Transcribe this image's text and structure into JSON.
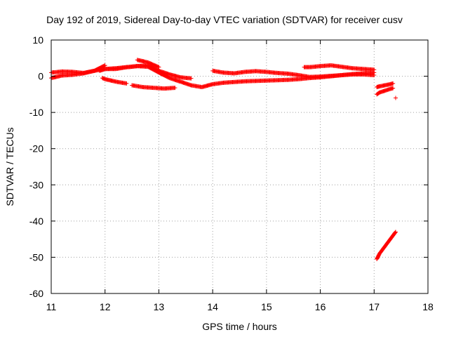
{
  "chart_data": {
    "type": "scatter",
    "title": "Day 192 of 2019, Sidereal Day-to-day VTEC variation (SDTVAR) for receiver cusv",
    "xlabel": "GPS time / hours",
    "ylabel": "SDTVAR / TECUs",
    "xlim": [
      11,
      18
    ],
    "ylim": [
      -60,
      10
    ],
    "xticks": [
      "11",
      "12",
      "13",
      "14",
      "15",
      "16",
      "17",
      "18"
    ],
    "yticks": [
      "10",
      "0",
      "-10",
      "-20",
      "-30",
      "-40",
      "-50",
      "-60"
    ],
    "grid": true,
    "marker": "+",
    "color": "#ff0000",
    "series": [
      {
        "segments": [
          [
            [
              11.0,
              -0.5
            ],
            [
              11.2,
              0.2
            ],
            [
              11.4,
              0.4
            ],
            [
              11.6,
              0.8
            ],
            [
              11.8,
              1.5
            ],
            [
              12.0,
              2.0
            ],
            [
              12.2,
              2.2
            ],
            [
              12.4,
              2.5
            ],
            [
              12.6,
              2.8
            ],
            [
              12.8,
              2.6
            ],
            [
              13.0,
              1.0
            ],
            [
              13.2,
              -0.5
            ],
            [
              13.4,
              -1.5
            ],
            [
              13.6,
              -2.5
            ],
            [
              13.8,
              -3.0
            ],
            [
              14.0,
              -2.2
            ],
            [
              14.2,
              -1.8
            ],
            [
              14.4,
              -1.6
            ],
            [
              14.6,
              -1.4
            ],
            [
              14.8,
              -1.3
            ],
            [
              15.0,
              -1.2
            ],
            [
              15.2,
              -1.1
            ],
            [
              15.4,
              -1.0
            ],
            [
              15.6,
              -0.8
            ],
            [
              15.8,
              -0.5
            ],
            [
              16.0,
              -0.3
            ],
            [
              16.2,
              0.0
            ],
            [
              16.4,
              0.3
            ],
            [
              16.6,
              0.5
            ],
            [
              16.8,
              0.5
            ],
            [
              17.0,
              0.3
            ]
          ],
          [
            [
              11.0,
              1.0
            ],
            [
              11.2,
              1.3
            ],
            [
              11.4,
              1.2
            ],
            [
              11.6,
              0.9
            ],
            [
              11.8,
              1.5
            ],
            [
              12.0,
              3.0
            ]
          ],
          [
            [
              11.9,
              1.5
            ],
            [
              12.0,
              2.0
            ],
            [
              12.2,
              2.0
            ],
            [
              12.4,
              2.5
            ],
            [
              12.6,
              2.8
            ],
            [
              12.8,
              3.0
            ],
            [
              13.0,
              1.5
            ],
            [
              13.2,
              0.5
            ],
            [
              13.4,
              -0.3
            ],
            [
              13.6,
              -0.6
            ]
          ],
          [
            [
              12.6,
              4.5
            ],
            [
              12.8,
              3.8
            ],
            [
              13.0,
              2.5
            ]
          ],
          [
            [
              14.0,
              1.5
            ],
            [
              14.2,
              1.0
            ],
            [
              14.4,
              0.8
            ],
            [
              14.6,
              1.2
            ],
            [
              14.8,
              1.4
            ],
            [
              15.0,
              1.2
            ],
            [
              15.2,
              0.9
            ],
            [
              15.4,
              0.7
            ],
            [
              15.6,
              0.3
            ],
            [
              15.8,
              -0.2
            ],
            [
              16.0,
              -0.1
            ],
            [
              16.2,
              0.1
            ],
            [
              16.4,
              0.3
            ],
            [
              16.6,
              0.6
            ],
            [
              16.8,
              0.8
            ],
            [
              17.0,
              1.0
            ]
          ],
          [
            [
              15.7,
              2.5
            ],
            [
              15.8,
              2.5
            ],
            [
              16.0,
              2.8
            ],
            [
              16.2,
              3.0
            ],
            [
              16.4,
              2.6
            ],
            [
              16.6,
              2.2
            ],
            [
              16.8,
              2.0
            ],
            [
              17.0,
              1.8
            ]
          ],
          [
            [
              11.95,
              -0.5
            ],
            [
              12.0,
              -0.8
            ],
            [
              12.2,
              -1.5
            ],
            [
              12.4,
              -2.0
            ]
          ],
          [
            [
              12.5,
              -2.5
            ],
            [
              12.7,
              -3.0
            ],
            [
              12.9,
              -3.2
            ],
            [
              13.1,
              -3.4
            ],
            [
              13.3,
              -3.2
            ]
          ],
          [
            [
              17.05,
              -5.0
            ],
            [
              17.1,
              -4.5
            ],
            [
              17.2,
              -4.0
            ],
            [
              17.3,
              -3.5
            ],
            [
              17.35,
              -3.3
            ]
          ],
          [
            [
              17.05,
              -3.0
            ],
            [
              17.1,
              -2.8
            ],
            [
              17.2,
              -2.5
            ],
            [
              17.3,
              -2.2
            ],
            [
              17.35,
              -2.0
            ]
          ],
          [
            [
              17.05,
              -50.5
            ],
            [
              17.1,
              -49.0
            ],
            [
              17.15,
              -48.0
            ],
            [
              17.2,
              -47.0
            ],
            [
              17.25,
              -46.0
            ],
            [
              17.3,
              -45.0
            ],
            [
              17.35,
              -44.0
            ],
            [
              17.4,
              -43.0
            ]
          ]
        ],
        "isolated_points": [
          [
            17.4,
            -6.0
          ]
        ]
      }
    ]
  }
}
